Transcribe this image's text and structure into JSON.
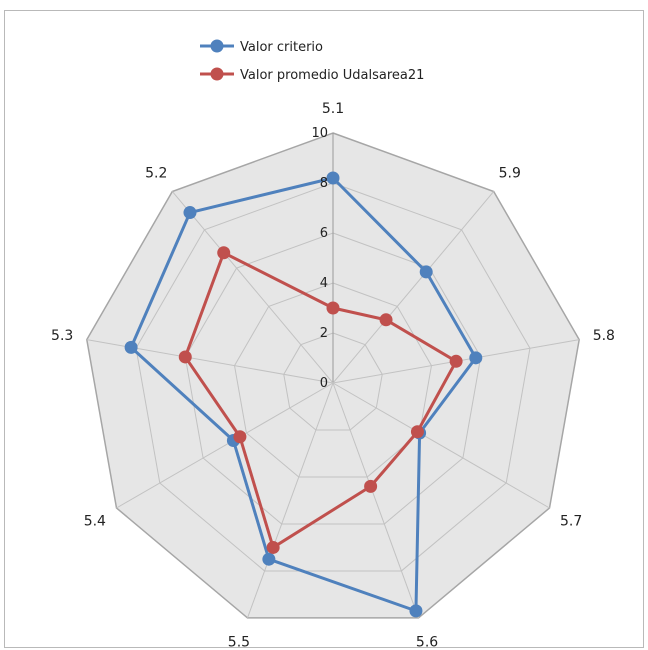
{
  "chart_data": {
    "type": "radar",
    "categories": [
      "5.1",
      "5.9",
      "5.8",
      "5.7",
      "5.6",
      "5.5",
      "5.4",
      "5.3",
      "5.2"
    ],
    "rlim": [
      0,
      10
    ],
    "ticks": [
      "0",
      "2",
      "4",
      "6",
      "8",
      "10"
    ],
    "grid": true,
    "legend_position": "top-left",
    "series": [
      {
        "name": "Valor criterio",
        "color": "#4f81bd",
        "values": [
          8.2,
          5.8,
          5.8,
          4.0,
          9.7,
          7.5,
          4.6,
          8.2,
          8.9
        ]
      },
      {
        "name": "Valor promedio Udalsarea21",
        "color": "#c0504d",
        "values": [
          3.0,
          3.3,
          5.0,
          3.9,
          4.4,
          7.0,
          4.3,
          6.0,
          6.8
        ]
      }
    ]
  }
}
